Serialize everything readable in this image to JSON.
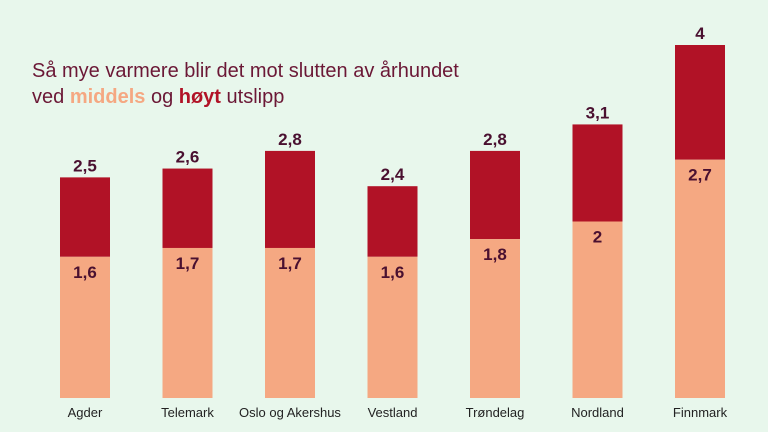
{
  "title": {
    "line1": "Så mye varmere blir det mot slutten av århundet",
    "line2_pre": "ved ",
    "line2_mid": "middels",
    "line2_og": " og ",
    "line2_high": "høyt",
    "line2_post": " utslipp"
  },
  "colors": {
    "background": "#e8f7ec",
    "middels": "#f5a882",
    "hoyt": "#b11226",
    "label_dark": "#4a1030",
    "axis_text": "#222222"
  },
  "chart_data": {
    "type": "bar",
    "categories": [
      "Agder",
      "Telemark",
      "Oslo og Akershus",
      "Vestland",
      "Trøndelag",
      "Nordland",
      "Finnmark"
    ],
    "series": [
      {
        "name": "middels",
        "values": [
          1.6,
          1.7,
          1.7,
          1.6,
          1.8,
          2,
          2.7
        ]
      },
      {
        "name": "høyt",
        "values": [
          2.5,
          2.6,
          2.8,
          2.4,
          2.8,
          3.1,
          4
        ]
      }
    ],
    "value_labels": {
      "middels": [
        "1,6",
        "1,7",
        "1,7",
        "1,6",
        "1,8",
        "2",
        "2,7"
      ],
      "høyt": [
        "2,5",
        "2,6",
        "2,8",
        "2,4",
        "2,8",
        "3,1",
        "4"
      ]
    },
    "ylim": [
      0,
      4
    ],
    "grid": false,
    "legend": "in-title"
  }
}
